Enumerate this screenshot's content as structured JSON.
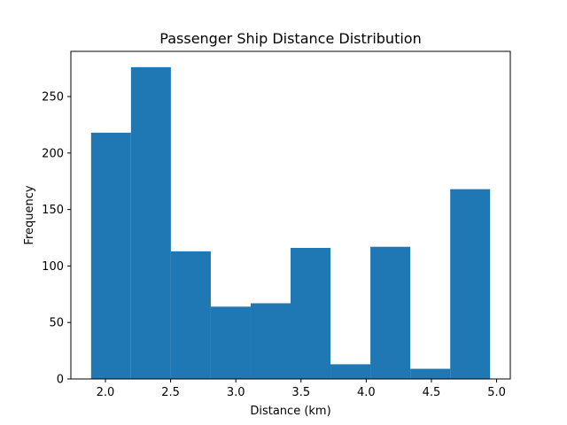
{
  "chart_data": {
    "type": "bar",
    "title": "Passenger Ship Distance Distribution",
    "xlabel": "Distance (km)",
    "ylabel": "Frequency",
    "bin_edges": [
      1.89,
      2.196,
      2.502,
      2.808,
      3.114,
      3.42,
      3.726,
      4.032,
      4.338,
      4.644,
      4.95
    ],
    "values": [
      218,
      276,
      113,
      64,
      67,
      116,
      13,
      117,
      9,
      168
    ],
    "xlim": [
      1.735,
      5.105
    ],
    "ylim": [
      0,
      290
    ],
    "xticks": [
      2.0,
      2.5,
      3.0,
      3.5,
      4.0,
      4.5,
      5.0
    ],
    "xtick_labels": [
      "2.0",
      "2.5",
      "3.0",
      "3.5",
      "4.0",
      "4.5",
      "5.0"
    ],
    "yticks": [
      0,
      50,
      100,
      150,
      200,
      250
    ],
    "ytick_labels": [
      "0",
      "50",
      "100",
      "150",
      "200",
      "250"
    ],
    "bar_color": "#1f77b4",
    "grid": false,
    "legend": "none"
  }
}
